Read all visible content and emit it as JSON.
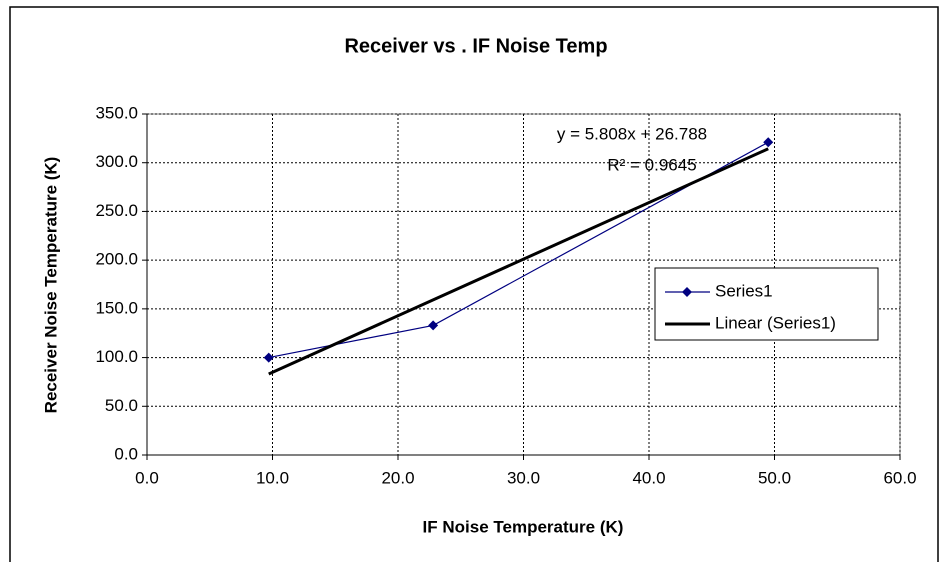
{
  "chart_data": {
    "type": "scatter",
    "title": "Receiver vs . IF Noise Temp",
    "x_label": "IF Noise Temperature (K)",
    "y_label": "Receiver Noise Temperature (K)",
    "series": [
      {
        "name": "Series1",
        "color": "#000080",
        "x": [
          9.7,
          22.8,
          49.5
        ],
        "values": [
          100,
          133,
          321
        ]
      }
    ],
    "trendline": {
      "name": "Linear (Series1)",
      "color": "#000000",
      "slope": 5.808,
      "intercept": 26.788,
      "equation": "y = 5.808x + 26.788",
      "r_squared": "R² = 0.9645"
    },
    "xlim": [
      0,
      60
    ],
    "xticks": [
      {
        "value": 0,
        "label": "0.0"
      },
      {
        "value": 10,
        "label": "10.0"
      },
      {
        "value": 20,
        "label": "20.0"
      },
      {
        "value": 30,
        "label": "30.0"
      },
      {
        "value": 40,
        "label": "40.0"
      },
      {
        "value": 50,
        "label": "50.0"
      },
      {
        "value": 60,
        "label": "60.0"
      }
    ],
    "ylim": [
      0,
      350
    ],
    "yticks": [
      {
        "value": 0,
        "label": "0.0"
      },
      {
        "value": 50,
        "label": "50.0"
      },
      {
        "value": 100,
        "label": "100.0"
      },
      {
        "value": 150,
        "label": "150.0"
      },
      {
        "value": 200,
        "label": "200.0"
      },
      {
        "value": 250,
        "label": "250.0"
      },
      {
        "value": 300,
        "label": "300.0"
      },
      {
        "value": 350,
        "label": "350.0"
      }
    ],
    "grid": true,
    "legend": "right"
  }
}
